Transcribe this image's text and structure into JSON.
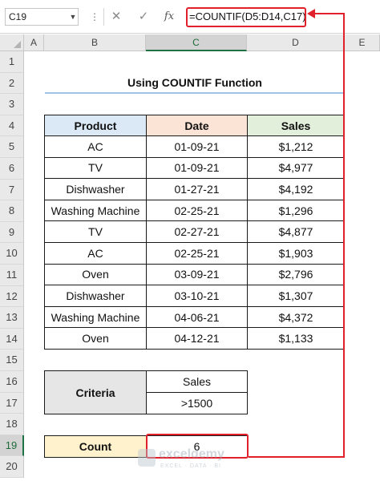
{
  "formula_bar": {
    "name_box": "C19",
    "cancel_icon": "✕",
    "enter_icon": "✓",
    "fx_label": "fx",
    "formula": "=COUNTIF(D5:D14,C17)"
  },
  "columns": [
    "A",
    "B",
    "C",
    "D",
    "E"
  ],
  "rows": [
    "1",
    "2",
    "3",
    "4",
    "5",
    "6",
    "7",
    "8",
    "9",
    "10",
    "11",
    "12",
    "13",
    "14",
    "15",
    "16",
    "17",
    "18",
    "19",
    "20"
  ],
  "title": "Using COUNTIF Function",
  "table": {
    "headers": [
      "Product",
      "Date",
      "Sales"
    ],
    "rows": [
      [
        "AC",
        "01-09-21",
        "$1,212"
      ],
      [
        "TV",
        "01-09-21",
        "$4,977"
      ],
      [
        "Dishwasher",
        "01-27-21",
        "$4,192"
      ],
      [
        "Washing Machine",
        "02-25-21",
        "$1,296"
      ],
      [
        "TV",
        "02-27-21",
        "$4,877"
      ],
      [
        "AC",
        "02-25-21",
        "$1,903"
      ],
      [
        "Oven",
        "03-09-21",
        "$2,796"
      ],
      [
        "Dishwasher",
        "03-10-21",
        "$1,307"
      ],
      [
        "Washing Machine",
        "04-06-21",
        "$4,372"
      ],
      [
        "Oven",
        "04-12-21",
        "$1,133"
      ]
    ]
  },
  "criteria": {
    "label": "Criteria",
    "field": "Sales",
    "value": ">1500"
  },
  "count": {
    "label": "Count",
    "value": "6"
  },
  "watermark": {
    "name": "exceldemy",
    "tagline": "EXCEL · DATA · BI"
  },
  "colors": {
    "accent_red": "#e0202a",
    "header_product": "#dbe9f6",
    "header_date": "#fbe3d6",
    "header_sales": "#e2efda",
    "criteria_bg": "#e7e6e6",
    "count_bg": "#fff2cc",
    "excel_green": "#217346"
  }
}
